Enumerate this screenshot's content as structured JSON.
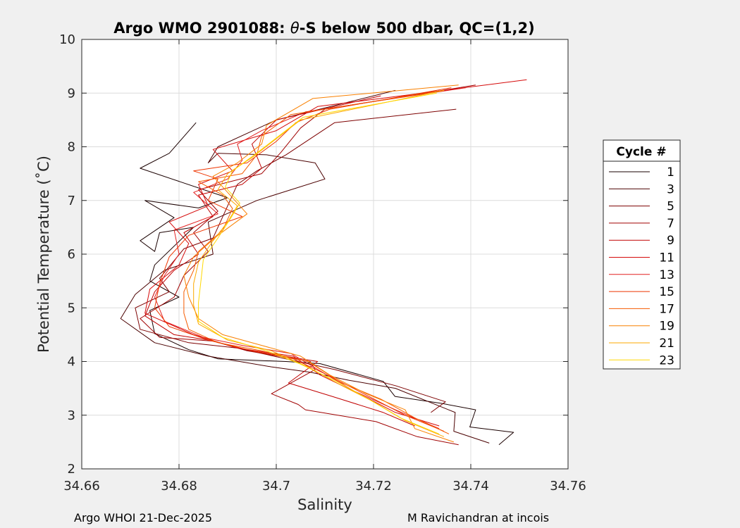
{
  "chart_data": {
    "type": "line",
    "title": "Argo WMO 2901088: θ-S below 500 dbar,  QC=(1,2)",
    "title_parts": {
      "prefix": "Argo WMO 2901088: ",
      "theta": "θ",
      "suffix": "-S below 500 dbar,  QC=(1,2)"
    },
    "xlabel": "Salinity",
    "ylabel": "Potential Temperature (˚C)",
    "xlim": [
      34.66,
      34.76
    ],
    "ylim": [
      2,
      10
    ],
    "xticks": [
      34.66,
      34.68,
      34.7,
      34.72,
      34.74,
      34.76
    ],
    "xtick_labels": [
      "34.66",
      "34.68",
      "34.7",
      "34.72",
      "34.74",
      "34.76"
    ],
    "yticks": [
      2,
      3,
      4,
      5,
      6,
      7,
      8,
      9,
      10
    ],
    "ytick_labels": [
      "2",
      "3",
      "4",
      "5",
      "6",
      "7",
      "8",
      "9",
      "10"
    ],
    "grid": true,
    "legend": {
      "title": "Cycle #",
      "placement": "right"
    },
    "series": [
      {
        "name": "1",
        "color": "#1a0000",
        "points": [
          [
            34.7458,
            2.45
          ],
          [
            34.7488,
            2.68
          ],
          [
            34.7398,
            2.78
          ],
          [
            34.741,
            3.1
          ],
          [
            34.734,
            3.22
          ],
          [
            34.7244,
            3.35
          ],
          [
            34.722,
            3.63
          ],
          [
            34.709,
            3.96
          ],
          [
            34.702,
            4.0
          ],
          [
            34.688,
            4.05
          ],
          [
            34.682,
            4.22
          ],
          [
            34.675,
            4.52
          ],
          [
            34.674,
            4.95
          ],
          [
            34.68,
            5.2
          ],
          [
            34.674,
            5.5
          ],
          [
            34.675,
            5.8
          ],
          [
            34.683,
            6.5
          ],
          [
            34.676,
            6.4
          ],
          [
            34.675,
            6.05
          ],
          [
            34.672,
            6.25
          ],
          [
            34.679,
            6.68
          ],
          [
            34.673,
            7.0
          ],
          [
            34.684,
            6.86
          ],
          [
            34.69,
            7.05
          ],
          [
            34.672,
            7.6
          ],
          [
            34.678,
            7.88
          ],
          [
            34.6835,
            8.45
          ]
        ]
      },
      {
        "name": "3",
        "color": "#4a0000",
        "points": [
          [
            34.7438,
            2.48
          ],
          [
            34.7365,
            2.7
          ],
          [
            34.7368,
            3.05
          ],
          [
            34.7245,
            3.5
          ],
          [
            34.715,
            3.65
          ],
          [
            34.707,
            3.8
          ],
          [
            34.699,
            3.9
          ],
          [
            34.686,
            4.1
          ],
          [
            34.675,
            4.35
          ],
          [
            34.668,
            4.8
          ],
          [
            34.671,
            5.25
          ],
          [
            34.677,
            5.7
          ],
          [
            34.687,
            6.0
          ],
          [
            34.686,
            6.6
          ],
          [
            34.696,
            7.0
          ],
          [
            34.71,
            7.4
          ],
          [
            34.708,
            7.7
          ],
          [
            34.698,
            7.85
          ],
          [
            34.688,
            7.88
          ],
          [
            34.686,
            7.7
          ],
          [
            34.688,
            8.0
          ],
          [
            34.7,
            8.5
          ],
          [
            34.7245,
            9.05
          ]
        ]
      },
      {
        "name": "5",
        "color": "#7d0000",
        "points": [
          [
            34.7318,
            3.05
          ],
          [
            34.7348,
            3.25
          ],
          [
            34.7245,
            3.55
          ],
          [
            34.712,
            3.85
          ],
          [
            34.702,
            4.05
          ],
          [
            34.692,
            4.25
          ],
          [
            34.682,
            4.35
          ],
          [
            34.672,
            4.6
          ],
          [
            34.671,
            5.0
          ],
          [
            34.678,
            5.3
          ],
          [
            34.676,
            5.55
          ],
          [
            34.681,
            6.1
          ],
          [
            34.687,
            6.3
          ],
          [
            34.69,
            6.9
          ],
          [
            34.692,
            7.3
          ],
          [
            34.696,
            7.55
          ],
          [
            34.702,
            7.85
          ],
          [
            34.712,
            8.45
          ],
          [
            34.737,
            8.7
          ]
        ]
      },
      {
        "name": "7",
        "color": "#a00000",
        "points": [
          [
            34.7375,
            2.45
          ],
          [
            34.729,
            2.6
          ],
          [
            34.7205,
            2.88
          ],
          [
            34.706,
            3.1
          ],
          [
            34.7045,
            3.2
          ],
          [
            34.699,
            3.4
          ],
          [
            34.708,
            3.85
          ],
          [
            34.707,
            4.0
          ],
          [
            34.694,
            4.2
          ],
          [
            34.687,
            4.38
          ],
          [
            34.676,
            4.45
          ],
          [
            34.672,
            4.8
          ],
          [
            34.679,
            5.2
          ],
          [
            34.681,
            5.6
          ],
          [
            34.686,
            6.05
          ],
          [
            34.683,
            6.4
          ],
          [
            34.688,
            6.8
          ],
          [
            34.684,
            7.2
          ],
          [
            34.697,
            7.5
          ],
          [
            34.701,
            7.9
          ],
          [
            34.705,
            8.35
          ],
          [
            34.71,
            8.7
          ],
          [
            34.741,
            9.15
          ]
        ]
      },
      {
        "name": "9",
        "color": "#c00000",
        "points": [
          [
            34.7285,
            2.8
          ],
          [
            34.722,
            3.05
          ],
          [
            34.7115,
            3.35
          ],
          [
            34.7025,
            3.6
          ],
          [
            34.7085,
            4.0
          ],
          [
            34.695,
            4.2
          ],
          [
            34.686,
            4.4
          ],
          [
            34.679,
            4.5
          ],
          [
            34.673,
            4.85
          ],
          [
            34.675,
            5.3
          ],
          [
            34.679,
            5.7
          ],
          [
            34.684,
            6.0
          ],
          [
            34.681,
            6.4
          ],
          [
            34.687,
            6.7
          ],
          [
            34.684,
            7.1
          ],
          [
            34.693,
            7.3
          ],
          [
            34.697,
            7.6
          ],
          [
            34.695,
            8.05
          ],
          [
            34.7,
            8.5
          ],
          [
            34.7215,
            8.95
          ]
        ]
      },
      {
        "name": "11",
        "color": "#d50a0a",
        "points": [
          [
            34.7335,
            2.8
          ],
          [
            34.7245,
            3.05
          ],
          [
            34.717,
            3.4
          ],
          [
            34.709,
            3.75
          ],
          [
            34.7035,
            4.1
          ],
          [
            34.692,
            4.25
          ],
          [
            34.683,
            4.5
          ],
          [
            34.673,
            4.9
          ],
          [
            34.674,
            5.35
          ],
          [
            34.68,
            5.8
          ],
          [
            34.682,
            6.2
          ],
          [
            34.678,
            6.6
          ],
          [
            34.686,
            6.9
          ],
          [
            34.684,
            7.3
          ],
          [
            34.691,
            7.55
          ],
          [
            34.687,
            7.95
          ],
          [
            34.7,
            8.3
          ],
          [
            34.7085,
            8.75
          ],
          [
            34.7515,
            9.25
          ]
        ]
      },
      {
        "name": "13",
        "color": "#e32020",
        "points": [
          [
            34.7335,
            2.75
          ],
          [
            34.7245,
            3.1
          ],
          [
            34.716,
            3.45
          ],
          [
            34.7095,
            3.8
          ],
          [
            34.703,
            4.15
          ],
          [
            34.693,
            4.3
          ],
          [
            34.685,
            4.45
          ],
          [
            34.677,
            4.75
          ],
          [
            34.675,
            5.2
          ],
          [
            34.677,
            5.6
          ],
          [
            34.68,
            6.0
          ],
          [
            34.679,
            6.45
          ],
          [
            34.688,
            6.75
          ],
          [
            34.683,
            7.15
          ],
          [
            34.69,
            7.4
          ],
          [
            34.693,
            7.75
          ],
          [
            34.692,
            8.05
          ],
          [
            34.697,
            8.3
          ],
          [
            34.706,
            8.65
          ],
          [
            34.739,
            9.1
          ]
        ]
      },
      {
        "name": "15",
        "color": "#ee3500",
        "points": [
          [
            34.7345,
            2.7
          ],
          [
            34.7265,
            3.0
          ],
          [
            34.718,
            3.4
          ],
          [
            34.7105,
            3.75
          ],
          [
            34.7035,
            4.05
          ],
          [
            34.695,
            4.2
          ],
          [
            34.686,
            4.4
          ],
          [
            34.678,
            4.65
          ],
          [
            34.675,
            5.0
          ],
          [
            34.676,
            5.45
          ],
          [
            34.678,
            5.95
          ],
          [
            34.682,
            6.35
          ],
          [
            34.693,
            6.7
          ],
          [
            34.686,
            7.0
          ],
          [
            34.688,
            7.4
          ],
          [
            34.683,
            7.55
          ],
          [
            34.694,
            7.7
          ],
          [
            34.7,
            8.1
          ],
          [
            34.704,
            8.45
          ],
          [
            34.711,
            8.7
          ],
          [
            34.736,
            9.1
          ]
        ]
      },
      {
        "name": "17",
        "color": "#f55a00",
        "points": [
          [
            34.7355,
            2.65
          ],
          [
            34.7285,
            2.95
          ],
          [
            34.7215,
            3.3
          ],
          [
            34.7135,
            3.6
          ],
          [
            34.7065,
            4.0
          ],
          [
            34.697,
            4.2
          ],
          [
            34.688,
            4.35
          ],
          [
            34.682,
            4.6
          ],
          [
            34.681,
            4.9
          ],
          [
            34.681,
            5.3
          ],
          [
            34.683,
            5.7
          ],
          [
            34.684,
            6.05
          ],
          [
            34.689,
            6.45
          ],
          [
            34.691,
            6.85
          ],
          [
            34.689,
            7.1
          ],
          [
            34.684,
            7.35
          ],
          [
            34.693,
            7.5
          ],
          [
            34.696,
            7.85
          ],
          [
            34.697,
            8.2
          ],
          [
            34.703,
            8.6
          ],
          [
            34.7345,
            9.05
          ]
        ]
      },
      {
        "name": "19",
        "color": "#f98000",
        "points": [
          [
            34.7365,
            2.5
          ],
          [
            34.7285,
            2.75
          ],
          [
            34.7265,
            3.1
          ],
          [
            34.7185,
            3.4
          ],
          [
            34.711,
            3.75
          ],
          [
            34.705,
            4.1
          ],
          [
            34.697,
            4.3
          ],
          [
            34.689,
            4.5
          ],
          [
            34.684,
            4.8
          ],
          [
            34.682,
            5.2
          ],
          [
            34.681,
            5.6
          ],
          [
            34.683,
            5.95
          ],
          [
            34.688,
            6.35
          ],
          [
            34.694,
            6.75
          ],
          [
            34.691,
            7.05
          ],
          [
            34.687,
            7.45
          ],
          [
            34.692,
            7.7
          ],
          [
            34.697,
            8.05
          ],
          [
            34.698,
            8.4
          ],
          [
            34.7075,
            8.9
          ],
          [
            34.7375,
            9.15
          ]
        ]
      },
      {
        "name": "21",
        "color": "#fca800",
        "points": [
          [
            34.7345,
            2.6
          ],
          [
            34.7265,
            2.9
          ],
          [
            34.72,
            3.25
          ],
          [
            34.7135,
            3.55
          ],
          [
            34.7065,
            3.9
          ],
          [
            34.699,
            4.2
          ],
          [
            34.69,
            4.4
          ],
          [
            34.684,
            4.7
          ],
          [
            34.683,
            5.05
          ],
          [
            34.683,
            5.45
          ],
          [
            34.684,
            5.85
          ],
          [
            34.687,
            6.25
          ],
          [
            34.69,
            6.6
          ],
          [
            34.692,
            6.9
          ],
          [
            34.688,
            7.2
          ],
          [
            34.69,
            7.5
          ],
          [
            34.695,
            7.8
          ],
          [
            34.7,
            8.15
          ],
          [
            34.705,
            8.5
          ],
          [
            34.7345,
            9.05
          ]
        ]
      },
      {
        "name": "23",
        "color": "#ffd800",
        "points": [
          [
            34.7335,
            2.65
          ],
          [
            34.7255,
            2.95
          ],
          [
            34.719,
            3.3
          ],
          [
            34.712,
            3.65
          ],
          [
            34.705,
            3.95
          ],
          [
            34.698,
            4.2
          ],
          [
            34.689,
            4.45
          ],
          [
            34.684,
            4.75
          ],
          [
            34.684,
            5.1
          ],
          [
            34.6845,
            5.5
          ],
          [
            34.685,
            5.9
          ],
          [
            34.688,
            6.3
          ],
          [
            34.6905,
            6.65
          ],
          [
            34.6925,
            6.95
          ],
          [
            34.6895,
            7.25
          ],
          [
            34.691,
            7.55
          ],
          [
            34.6955,
            7.85
          ],
          [
            34.7005,
            8.2
          ],
          [
            34.7055,
            8.55
          ],
          [
            34.733,
            9.0
          ]
        ]
      }
    ]
  },
  "footer": {
    "left": "Argo WHOI 21-Dec-2025",
    "right": "M Ravichandran at incois"
  }
}
